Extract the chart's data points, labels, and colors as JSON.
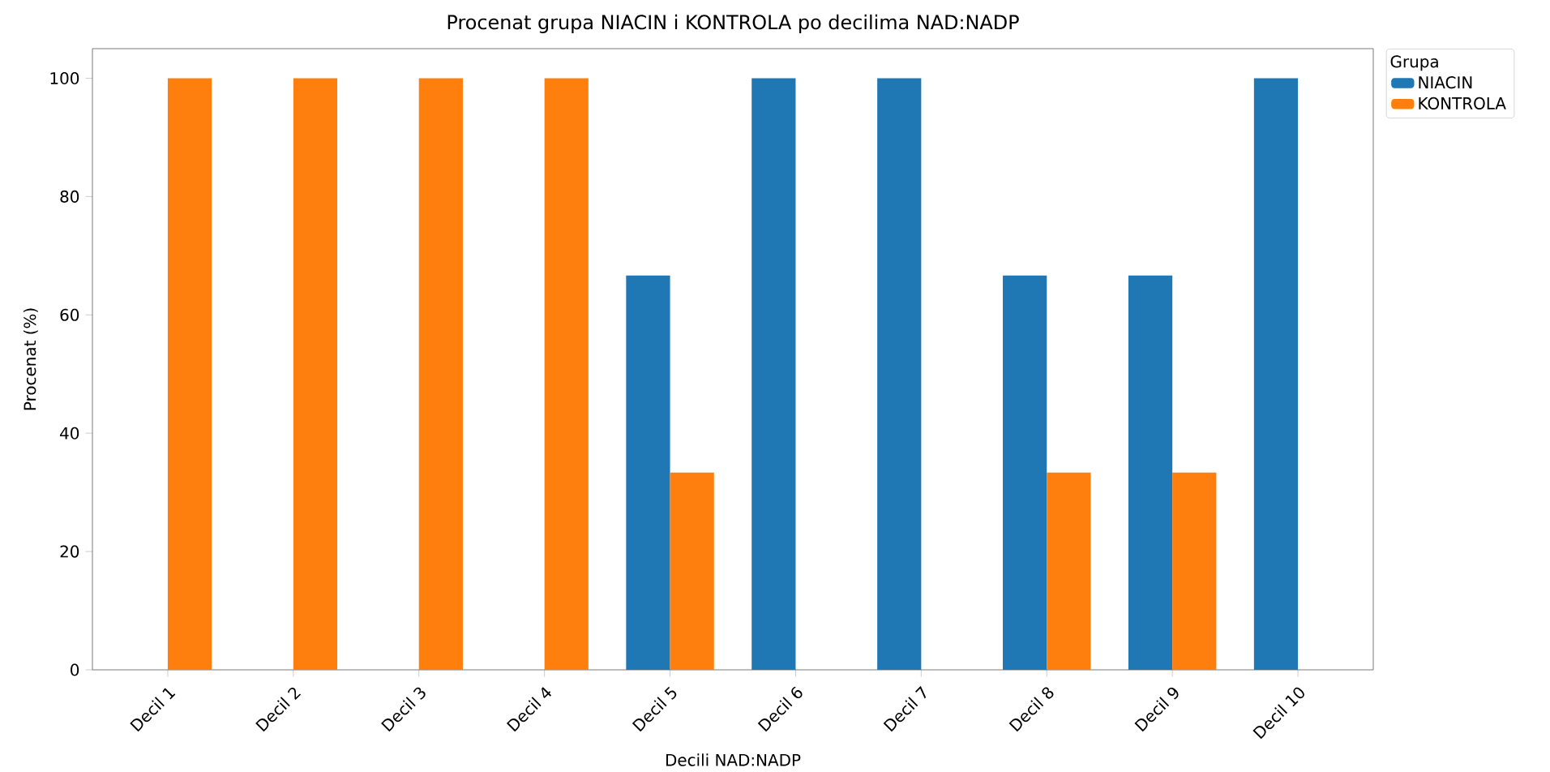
{
  "chart_data": {
    "type": "bar",
    "title": "Procenat grupa NIACIN i KONTROLA po decilima NAD:NADP",
    "xlabel": "Decili NAD:NADP",
    "ylabel": "Procenat (%)",
    "legend_title": "Grupa",
    "categories": [
      "Decil 1",
      "Decil 2",
      "Decil 3",
      "Decil 4",
      "Decil 5",
      "Decil 6",
      "Decil 7",
      "Decil 8",
      "Decil 9",
      "Decil 10"
    ],
    "series": [
      {
        "name": "NIACIN",
        "color": "#1f77b4",
        "values": [
          0,
          0,
          0,
          0,
          66.67,
          100,
          100,
          66.67,
          66.67,
          100
        ]
      },
      {
        "name": "KONTROLA",
        "color": "#ff7f0e",
        "values": [
          100,
          100,
          100,
          100,
          33.33,
          0,
          0,
          33.33,
          33.33,
          0
        ]
      }
    ],
    "ylim": [
      0,
      105
    ],
    "yticks": [
      0,
      20,
      40,
      60,
      80,
      100
    ],
    "legend": "top right"
  }
}
